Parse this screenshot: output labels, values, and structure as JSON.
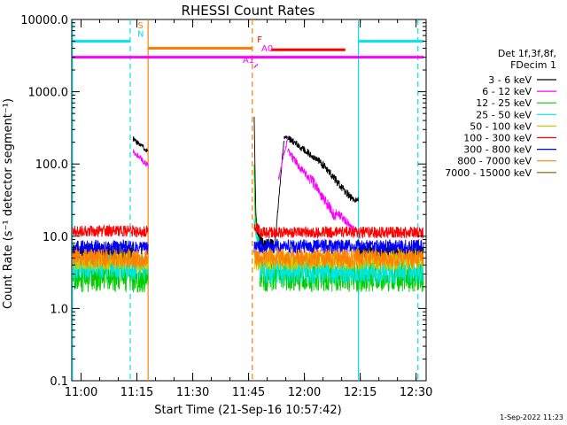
{
  "chart_data": {
    "type": "line",
    "title": "RHESSI Count Rates",
    "xlabel": "Start Time (21-Sep-16 10:57:42)",
    "ylabel": "Count Rate (s⁻¹ detector segment⁻¹)",
    "yscale": "log",
    "ylim": [
      0.1,
      10000
    ],
    "xlim_minutes": [
      -0.2,
      95
    ],
    "x_tick_labels": [
      "11:00",
      "11:15",
      "11:30",
      "11:45",
      "12:00",
      "12:15",
      "12:30"
    ],
    "x_tick_minutes": [
      2.3,
      17.3,
      32.3,
      47.3,
      62.3,
      77.3,
      92.3
    ],
    "y_tick_labels": [
      "0.1",
      "1.0",
      "10.0",
      "100.0",
      "1000.0",
      "10000.0"
    ],
    "y_tick_values": [
      0.1,
      1,
      10,
      100,
      1000,
      10000
    ],
    "legend_header": [
      "Det 1f,3f,8f,",
      "FDecim 1"
    ],
    "legend_position": "right",
    "series": [
      {
        "name": "3 - 6 keV",
        "color": "#000000",
        "segments": [
          {
            "start": 0,
            "end": 16.3,
            "level": 6.0,
            "noise": 0.12
          },
          {
            "start": 16.3,
            "end": 20.3,
            "level": 220,
            "end_level": 150,
            "noise": 0.04
          },
          {
            "start": 48.8,
            "end": 50.3,
            "level": 500,
            "end_level": 9.5,
            "noise": 0.1,
            "decay": "fast"
          },
          {
            "start": 50.3,
            "end": 54.3,
            "level": 9.0,
            "end_level": 7.0,
            "noise": 0.1
          },
          {
            "start": 54.3,
            "end": 56.8,
            "level": 7.0,
            "end_level": 220,
            "noise": 0.03
          },
          {
            "start": 56.8,
            "end": 58.3,
            "level": 230,
            "noise": 0.03
          },
          {
            "start": 58.3,
            "end": 66.3,
            "level": 220,
            "end_level": 110,
            "noise": 0.05
          },
          {
            "start": 66.3,
            "end": 75.3,
            "level": 110,
            "end_level": 32,
            "noise": 0.06
          },
          {
            "start": 75.3,
            "end": 76.8,
            "level": 32,
            "noise": 0.04
          },
          {
            "start": 76.8,
            "end": 94.3,
            "level": 6.0,
            "noise": 0.12
          }
        ]
      },
      {
        "name": "6 - 12 keV",
        "color": "#ff00ff",
        "segments": [
          {
            "start": 16.3,
            "end": 20.3,
            "level": 150,
            "end_level": 95,
            "noise": 0.04
          },
          {
            "start": 48.8,
            "end": 49.8,
            "level": 2200,
            "end_level": 2400,
            "noise": 0.01
          },
          {
            "start": 55.3,
            "end": 57.8,
            "level": 60,
            "end_level": 230,
            "noise": 0.04
          },
          {
            "start": 57.8,
            "end": 63.8,
            "level": 150,
            "end_level": 60,
            "noise": 0.06
          },
          {
            "start": 63.8,
            "end": 70.8,
            "level": 65,
            "end_level": 18,
            "noise": 0.08
          },
          {
            "start": 70.8,
            "end": 74.3,
            "level": 22,
            "end_level": 15,
            "noise": 0.06
          },
          {
            "start": 74.3,
            "end": 76.8,
            "level": 14,
            "end_level": 11,
            "noise": 0.04
          }
        ]
      },
      {
        "name": "12 - 25 keV",
        "color": "#00cc00",
        "segments": [
          {
            "start": 0,
            "end": 16.3,
            "level": 2.8,
            "noise": 0.22
          },
          {
            "start": 16.3,
            "end": 20.3,
            "level": 2.5,
            "noise": 0.2
          },
          {
            "start": 48.8,
            "end": 50.3,
            "level": 80,
            "end_level": 8,
            "noise": 0.1,
            "decay": "fast"
          },
          {
            "start": 50.3,
            "end": 94.3,
            "level": 2.8,
            "noise": 0.22
          }
        ]
      },
      {
        "name": "25 - 50 keV",
        "color": "#00e5e5",
        "segments": [
          {
            "start": 0,
            "end": 16.3,
            "level": 3.8,
            "noise": 0.18
          },
          {
            "start": 16.3,
            "end": 20.3,
            "level": 3.6,
            "noise": 0.18
          },
          {
            "start": 48.8,
            "end": 50.3,
            "level": 15,
            "end_level": 6,
            "noise": 0.12
          },
          {
            "start": 50.3,
            "end": 94.3,
            "level": 3.3,
            "noise": 0.18
          }
        ]
      },
      {
        "name": "50 - 100 keV",
        "color": "#cccc00",
        "segments": [
          {
            "start": 0,
            "end": 16.3,
            "level": 4.6,
            "noise": 0.14
          },
          {
            "start": 16.3,
            "end": 20.3,
            "level": 4.4,
            "noise": 0.14
          },
          {
            "start": 48.8,
            "end": 94.3,
            "level": 4.6,
            "noise": 0.14
          }
        ]
      },
      {
        "name": "100 - 300 keV",
        "color": "#ff0000",
        "segments": [
          {
            "start": 0,
            "end": 16.3,
            "level": 11.8,
            "noise": 0.08
          },
          {
            "start": 16.3,
            "end": 20.3,
            "level": 11.5,
            "noise": 0.08
          },
          {
            "start": 48.8,
            "end": 50.3,
            "level": 14,
            "end_level": 12,
            "noise": 0.08
          },
          {
            "start": 50.3,
            "end": 94.3,
            "level": 11.3,
            "noise": 0.08
          }
        ]
      },
      {
        "name": "300 - 800 keV",
        "color": "#0000ff",
        "segments": [
          {
            "start": 0,
            "end": 16.3,
            "level": 7.0,
            "noise": 0.1
          },
          {
            "start": 16.3,
            "end": 20.3,
            "level": 6.8,
            "noise": 0.1
          },
          {
            "start": 48.8,
            "end": 94.3,
            "level": 7.2,
            "noise": 0.1
          }
        ]
      },
      {
        "name": "800 - 7000 keV",
        "color": "#ff8000",
        "segments": [
          {
            "start": 0,
            "end": 16.3,
            "level": 5.0,
            "noise": 0.13
          },
          {
            "start": 16.3,
            "end": 20.3,
            "level": 4.8,
            "noise": 0.13
          },
          {
            "start": 48.8,
            "end": 94.3,
            "level": 5.0,
            "noise": 0.13
          }
        ]
      },
      {
        "name": "7000 - 15000 keV",
        "color": "#806000",
        "segments": []
      }
    ],
    "state_bars": [
      {
        "label": "",
        "color": "#00e5e5",
        "value": 5000,
        "x_ranges": [
          [
            0,
            15.5
          ],
          [
            76.8,
            94.3
          ]
        ]
      },
      {
        "label": "",
        "color": "#ff00ff",
        "value": 3000,
        "x_ranges": [
          [
            0,
            94.3
          ]
        ]
      },
      {
        "label": "",
        "color": "#ff8000",
        "value": 4000,
        "x_ranges": [
          [
            20.3,
            48.3
          ]
        ]
      },
      {
        "label": "",
        "color": "#ff0000",
        "value": 3800,
        "x_ranges": [
          [
            53.3,
            73.3
          ]
        ]
      }
    ],
    "vertical_lines": [
      {
        "minutes": 0,
        "color": "#00e5e5",
        "style": "solid"
      },
      {
        "minutes": 15.5,
        "color": "#00e5e5",
        "style": "dashed"
      },
      {
        "minutes": 20.3,
        "color": "#ff8000",
        "style": "solid"
      },
      {
        "minutes": 48.3,
        "color": "#ff8000",
        "style": "dashed"
      },
      {
        "minutes": 76.8,
        "color": "#00e5e5",
        "style": "solid"
      },
      {
        "minutes": 92.8,
        "color": "#00e5e5",
        "style": "dashed"
      }
    ],
    "annotations": [
      {
        "text": "S",
        "color": "#ff8000",
        "minutes": 18.3,
        "value": 7500
      },
      {
        "text": "N",
        "color": "#00e5e5",
        "minutes": 18.3,
        "value": 5800
      },
      {
        "text": "F",
        "color": "#ff0000",
        "minutes": 50.3,
        "value": 4800
      },
      {
        "text": "A0",
        "color": "#ff00ff",
        "minutes": 52.3,
        "value": 3600
      },
      {
        "text": "A1",
        "color": "#ff00ff",
        "minutes": 47.3,
        "value": 2500
      }
    ]
  },
  "footer": {
    "timestamp": "1-Sep-2022 11:23"
  }
}
